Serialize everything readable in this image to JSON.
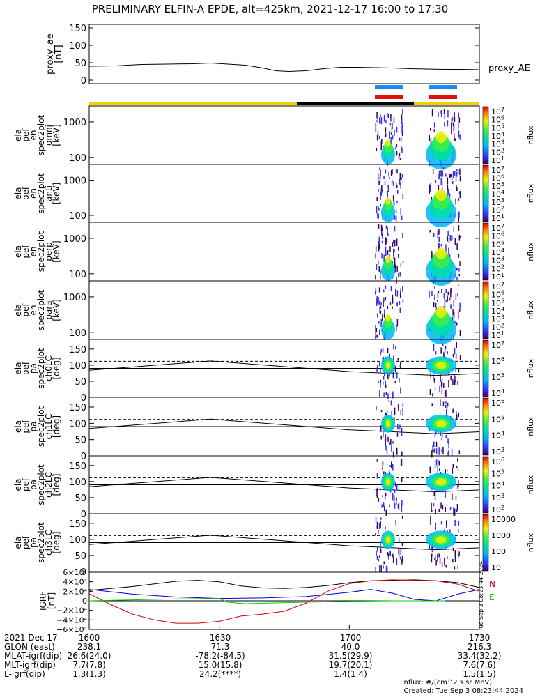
{
  "title": "PRELIMINARY ELFIN-A EPDE, alt=425km, 2021-12-17 16:00 to 17:30",
  "chart_data": [
    {
      "type": "line",
      "panel": "proxy_ae",
      "ylabel": [
        "proxy_ae",
        "[nT]"
      ],
      "yticks": [
        "150",
        "100",
        "50",
        "0"
      ],
      "ylim": [
        -10,
        160
      ],
      "series": [
        {
          "name": "proxy_AE",
          "x": [
            1600,
            1606,
            1612,
            1618,
            1624,
            1628,
            1632,
            1636,
            1640,
            1643,
            1646,
            1650,
            1654,
            1658,
            1702,
            1706,
            1710,
            1714,
            1718,
            1722,
            1726,
            1730
          ],
          "y": [
            40,
            41,
            45,
            46,
            47,
            49,
            46,
            43,
            35,
            27,
            25,
            27,
            33,
            37,
            37,
            36,
            35,
            33,
            32,
            31,
            31,
            30
          ]
        }
      ]
    },
    {
      "type": "heatmap",
      "panels": [
        {
          "ylabel": [
            "ela",
            "pef",
            "en",
            "spec2plot",
            "omni",
            "[keV]"
          ],
          "yticks": [
            "1000",
            "100"
          ],
          "colorbar_ticks": [
            "10^7",
            "10^6",
            "10^5",
            "10^4",
            "10^3",
            "10^2",
            "10^1"
          ],
          "colorbar_label": "nflux"
        },
        {
          "ylabel": [
            "ela",
            "pef",
            "en",
            "spec2plot",
            "anti",
            "[keV]"
          ],
          "yticks": [
            "1000",
            "100"
          ],
          "colorbar_ticks": [
            "10^7",
            "10^6",
            "10^5",
            "10^4",
            "10^3",
            "10^2",
            "10^1"
          ],
          "colorbar_label": "nflux"
        },
        {
          "ylabel": [
            "ela",
            "pef",
            "en",
            "spec2plot",
            "perp",
            "[keV]"
          ],
          "yticks": [
            "1000",
            "100"
          ],
          "colorbar_ticks": [
            "10^7",
            "10^6",
            "10^5",
            "10^4",
            "10^3",
            "10^2",
            "10^1"
          ],
          "colorbar_label": "nflux"
        },
        {
          "ylabel": [
            "ela",
            "pef",
            "en",
            "spec2plot",
            "para",
            "[keV]"
          ],
          "yticks": [
            "1000",
            "100"
          ],
          "colorbar_ticks": [
            "10^7",
            "10^6",
            "10^5",
            "10^4",
            "10^3",
            "10^2",
            "10^1"
          ],
          "colorbar_label": "nflux"
        },
        {
          "ylabel": [
            "ela",
            "pef",
            "pa",
            "spec2plot",
            "ch0LC",
            "[deg]"
          ],
          "yticks": [
            "150",
            "100",
            "50",
            "0"
          ],
          "colorbar_ticks": [
            "10^7",
            "10^6",
            "10^5",
            "10^4"
          ],
          "colorbar_label": "nflux"
        },
        {
          "ylabel": [
            "ela",
            "pef",
            "pa",
            "spec2plot",
            "ch1LC",
            "[deg]"
          ],
          "yticks": [
            "150",
            "100",
            "50",
            "0"
          ],
          "colorbar_ticks": [
            "10^6",
            "10^5",
            "10^4",
            "10^3"
          ],
          "colorbar_label": "nflux"
        },
        {
          "ylabel": [
            "ela",
            "pef",
            "pa",
            "spec2plot",
            "ch2LC",
            "[deg]"
          ],
          "yticks": [
            "150",
            "100",
            "50",
            "0"
          ],
          "colorbar_ticks": [
            "10^6",
            "10^5",
            "10^4",
            "10^3",
            "10^2"
          ],
          "colorbar_label": "nflux"
        },
        {
          "ylabel": [
            "ela",
            "pef",
            "pa",
            "spec2plot",
            "ch3LC",
            "[deg]"
          ],
          "yticks": [
            "150",
            "100",
            "50",
            "0"
          ],
          "colorbar_ticks": [
            "10000",
            "1000",
            "100",
            "10"
          ],
          "colorbar_label": "nflux"
        }
      ]
    },
    {
      "type": "line",
      "panel": "IGRF",
      "ylabel": [
        "IGRF",
        "[nT]"
      ],
      "yticks": [
        "6×10⁴",
        "4×10⁴",
        "2×10⁴",
        "0",
        "−2×10⁴",
        "−4×10⁴",
        "−6×10⁴"
      ],
      "ylim": [
        -60000,
        60000
      ],
      "legend": [
        "N",
        "E"
      ],
      "series": [
        {
          "name": "",
          "color": "#000000",
          "x": [
            1600,
            1610,
            1620,
            1625,
            1630,
            1635,
            1640,
            1645,
            1650,
            1655,
            1700,
            1705,
            1710,
            1715,
            1720,
            1725,
            1730
          ],
          "y": [
            22000,
            30000,
            41000,
            43000,
            40000,
            31000,
            27000,
            26000,
            28000,
            32000,
            38000,
            42000,
            43000,
            44000,
            42000,
            38000,
            28000
          ]
        },
        {
          "name": "N",
          "color": "#d00000",
          "x": [
            1600,
            1605,
            1610,
            1615,
            1620,
            1625,
            1630,
            1635,
            1640,
            1645,
            1650,
            1655,
            1700,
            1705,
            1710,
            1715,
            1720,
            1725,
            1730
          ],
          "y": [
            15000,
            -8000,
            -28000,
            -40000,
            -47000,
            -47000,
            -43000,
            -32000,
            -28000,
            -22000,
            -5000,
            20000,
            36000,
            42000,
            44000,
            43000,
            42000,
            35000,
            20000
          ]
        },
        {
          "name": "",
          "color": "#0000d0",
          "x": [
            1600,
            1610,
            1620,
            1630,
            1640,
            1650,
            1700,
            1705,
            1710,
            1715,
            1720,
            1725,
            1730
          ],
          "y": [
            24000,
            14000,
            8000,
            5000,
            6000,
            9000,
            18000,
            24000,
            16000,
            3000,
            0,
            14000,
            24000
          ]
        },
        {
          "name": "E",
          "color": "#00d000",
          "x": [
            1600,
            1610,
            1620,
            1630,
            1632,
            1636,
            1640,
            1650,
            1700,
            1710,
            1720,
            1722
          ],
          "y": [
            0,
            2000,
            4000,
            5000,
            -3000,
            -6000,
            -5000,
            -3000,
            -1000,
            0,
            0,
            0
          ]
        }
      ]
    }
  ],
  "timeline": {
    "xticks": [
      "1600",
      "1630",
      "1700",
      "1730"
    ],
    "rows": [
      {
        "label": "2021 Dec 17",
        "values": [
          "1600",
          "1630",
          "1700",
          "1730"
        ]
      },
      {
        "label": "GLON (east)",
        "values": [
          "238.1",
          "71.3",
          "40.0",
          "216.3"
        ]
      },
      {
        "label": "MLAT-igrf(dip)",
        "values": [
          "26.6(24.0)",
          "-78.2(-84.5)",
          "31.5(29.9)",
          "33.4(32.2)"
        ]
      },
      {
        "label": "MLT-igrf(dip)",
        "values": [
          "7.7(7.8)",
          "15.0(15.8)",
          "19.7(20.1)",
          "7.6(7.6)"
        ]
      },
      {
        "label": "L-igrf(dip)",
        "values": [
          "1.3(1.3)",
          "24.2(****)",
          "1.4(1.4)",
          "1.5(1.5)"
        ]
      }
    ]
  },
  "footer": {
    "units": "nflux: #/(cm^2 s sr MeV)",
    "created": "Created: Tue Sep  3 08:23:44 2024",
    "side_stamp": "Tue Sep  3 08:23:44 2024"
  },
  "colors": {
    "bar_yellow": "#f0d000",
    "bar_black": "#000000",
    "flag_blue": "#1e88ff",
    "flag_red": "#e01010"
  }
}
